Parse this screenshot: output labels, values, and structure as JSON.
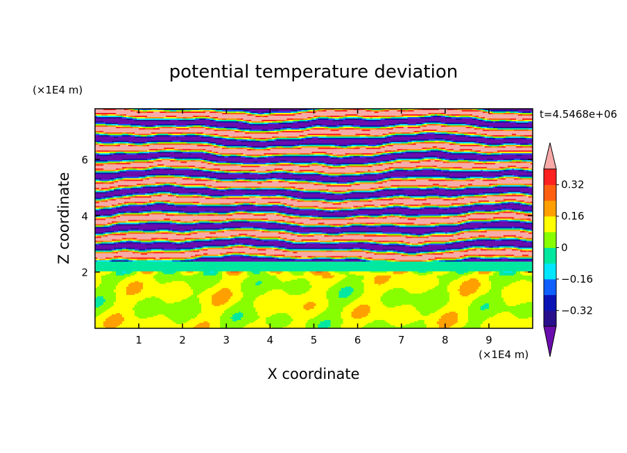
{
  "chart_data": {
    "type": "heatmap",
    "title": "potential temperature deviation",
    "xlabel": "X coordinate",
    "ylabel": "Z coordinate",
    "x_unit": "(×1E4 m)",
    "y_unit": "(×1E4 m)",
    "xlim": [
      0,
      10
    ],
    "ylim": [
      0,
      7.8
    ],
    "x_ticks": [
      1,
      2,
      3,
      4,
      5,
      6,
      7,
      8,
      9
    ],
    "y_ticks": [
      2,
      4,
      6
    ],
    "time_label": "t=4.5468e+06",
    "colorbar": {
      "levels": [
        -0.4,
        -0.32,
        -0.24,
        -0.16,
        -0.08,
        0,
        0.08,
        0.16,
        0.24,
        0.32,
        0.4
      ],
      "labels": [
        0.32,
        0.16,
        0,
        -0.16,
        -0.32
      ],
      "colors": [
        "#6a0dad",
        "#2a0f8c",
        "#0a14b4",
        "#1060ff",
        "#00e6ff",
        "#00e8a0",
        "#88ff00",
        "#ffff00",
        "#ffa000",
        "#ff6010",
        "#ff2020",
        "#f7aaa8"
      ],
      "extend": "both"
    }
  }
}
